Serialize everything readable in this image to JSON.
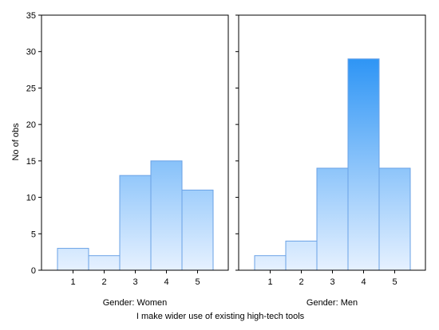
{
  "chart_data": [
    {
      "type": "bar",
      "panel_label": "Gender: Women",
      "categories": [
        "1",
        "2",
        "3",
        "4",
        "5"
      ],
      "values": [
        3,
        2,
        13,
        15,
        11
      ],
      "ylim": [
        0,
        35
      ],
      "yticks": [
        0,
        5,
        10,
        15,
        20,
        25,
        30,
        35
      ],
      "ylabel": "No of obs",
      "xlabel": "I make wider use of existing high-tech tools",
      "grid": false
    },
    {
      "type": "bar",
      "panel_label": "Gender: Men",
      "categories": [
        "1",
        "2",
        "3",
        "4",
        "5"
      ],
      "values": [
        2,
        4,
        14,
        29,
        14
      ],
      "ylim": [
        0,
        35
      ],
      "yticks": [
        0,
        5,
        10,
        15,
        20,
        25,
        30,
        35
      ],
      "ylabel": "No of obs",
      "xlabel": "I make wider use of existing high-tech tools",
      "grid": false
    }
  ],
  "colors": {
    "bar_top_strong": "#2e95f5",
    "bar_bottom": "#e6f1ff",
    "bar_stroke": "#6aa2e6",
    "frame": "#000000"
  }
}
